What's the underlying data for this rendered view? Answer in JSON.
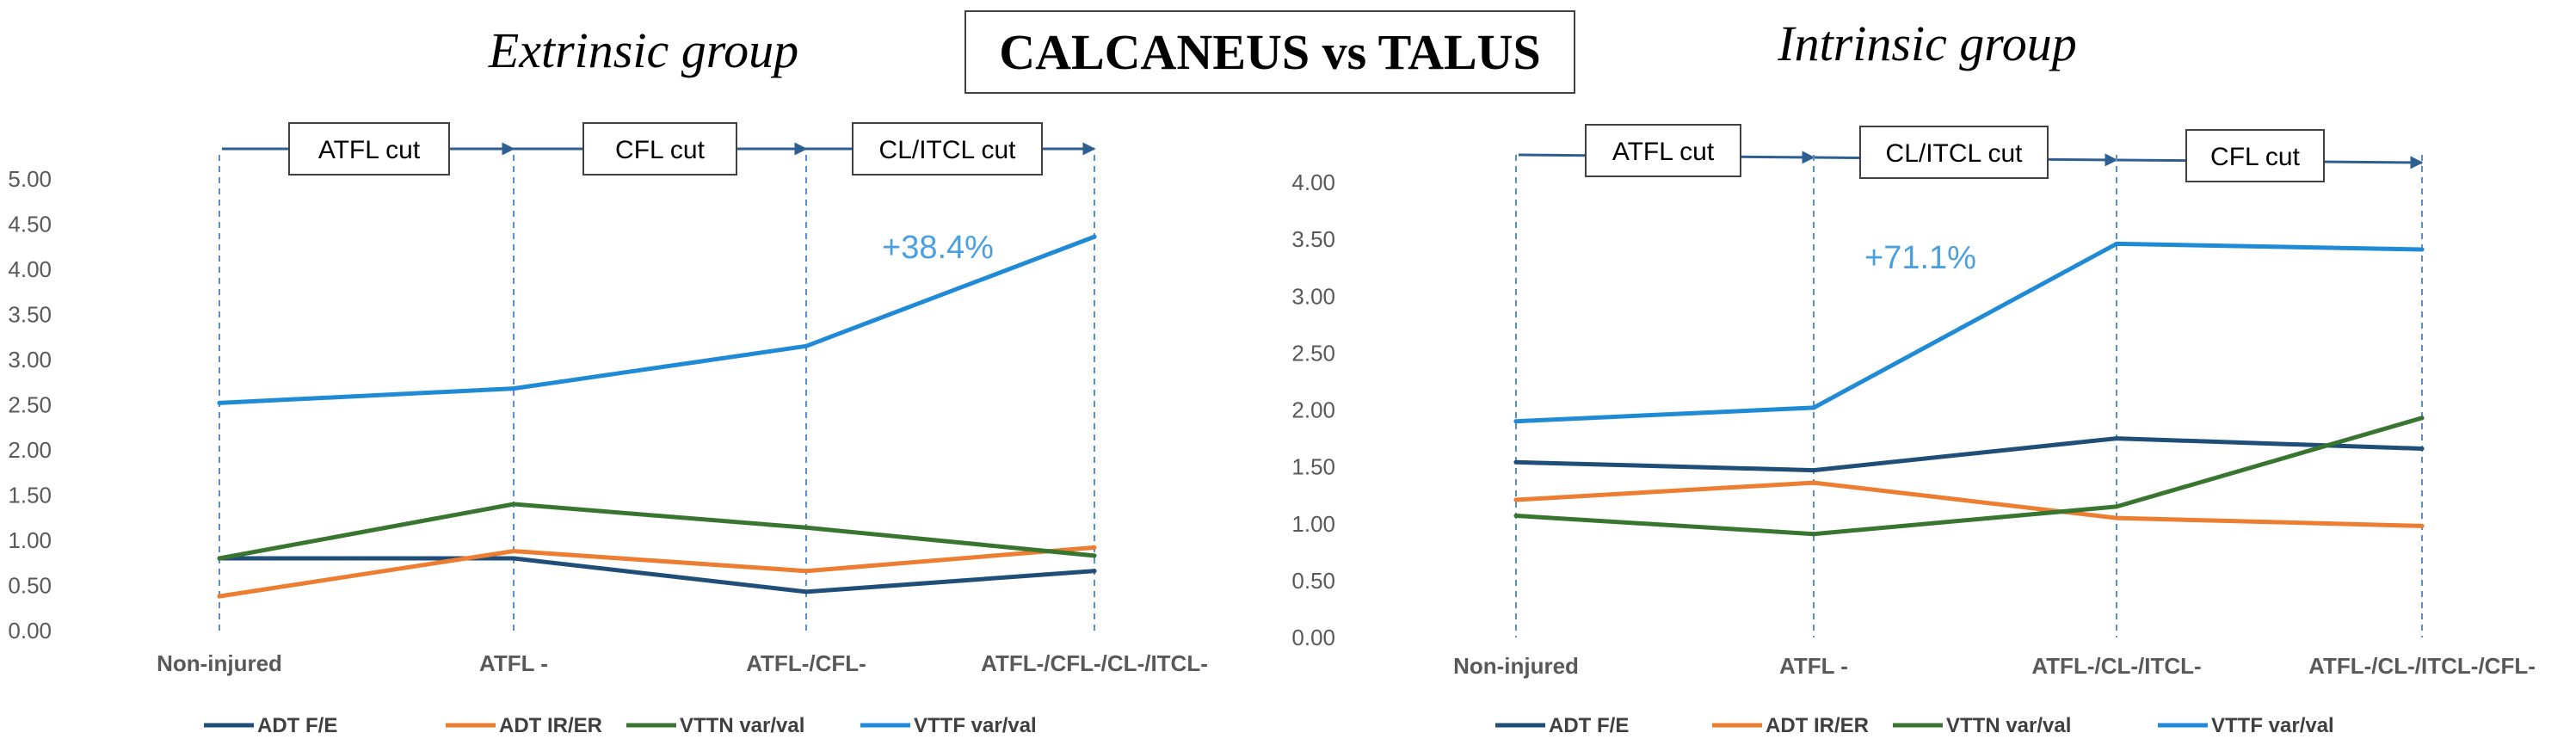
{
  "main_title": "CALCANEUS vs TALUS",
  "colors": {
    "ADT F/E": "#1f4e79",
    "ADT IR/ER": "#ed7d31",
    "VTTN var/val": "#38762f",
    "VTTF var/val": "#1f8ad6",
    "annotation": "#4a9fe0",
    "axis_text": "#595959",
    "flow_arrow": "#2e5f93"
  },
  "chart_data": [
    {
      "type": "line",
      "title": "Extrinsic group",
      "categories": [
        "Non-injured",
        "ATFL -",
        "ATFL-/CFL-",
        "ATFL-/CFL-/CL-/ITCL-"
      ],
      "ylim": [
        0,
        5
      ],
      "yticks": [
        "0.00",
        "0.50",
        "1.00",
        "1.50",
        "2.00",
        "2.50",
        "3.00",
        "3.50",
        "4.00",
        "4.50",
        "5.00"
      ],
      "grid": false,
      "legend": "bottom",
      "series": [
        {
          "name": "ADT F/E",
          "values": [
            0.8,
            0.8,
            0.43,
            0.66
          ]
        },
        {
          "name": "ADT IR/ER",
          "values": [
            0.38,
            0.88,
            0.66,
            0.92
          ]
        },
        {
          "name": "VTTN var/val",
          "values": [
            0.8,
            1.4,
            1.14,
            0.83
          ]
        },
        {
          "name": "VTTF var/val",
          "values": [
            2.52,
            2.68,
            3.15,
            4.36
          ]
        }
      ],
      "cuts": [
        "ATFL cut",
        "CFL cut",
        "CL/ITCL cut"
      ],
      "annotation": {
        "text": "+38.4%"
      }
    },
    {
      "type": "line",
      "title": "Intrinsic group",
      "categories": [
        "Non-injured",
        "ATFL -",
        "ATFL-/CL-/ITCL-",
        "ATFL-/CL-/ITCL-/CFL-"
      ],
      "ylim": [
        0,
        4
      ],
      "yticks": [
        "0.00",
        "0.50",
        "1.00",
        "1.50",
        "2.00",
        "2.50",
        "3.00",
        "3.50",
        "4.00"
      ],
      "grid": false,
      "legend": "bottom",
      "series": [
        {
          "name": "ADT F/E",
          "values": [
            1.54,
            1.47,
            1.75,
            1.66
          ]
        },
        {
          "name": "ADT IR/ER",
          "values": [
            1.21,
            1.36,
            1.05,
            0.98
          ]
        },
        {
          "name": "VTTN var/val",
          "values": [
            1.07,
            0.91,
            1.15,
            1.93
          ]
        },
        {
          "name": "VTTF var/val",
          "values": [
            1.9,
            2.02,
            3.46,
            3.41
          ]
        }
      ],
      "cuts": [
        "ATFL cut",
        "CL/ITCL cut",
        "CFL cut"
      ],
      "annotation": {
        "text": "+71.1%"
      }
    }
  ]
}
